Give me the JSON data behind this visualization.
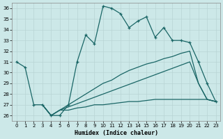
{
  "xlabel": "Humidex (Indice chaleur)",
  "bg_color": "#cce8e8",
  "line_color": "#1a6666",
  "xlim": [
    -0.5,
    23.5
  ],
  "ylim": [
    25.5,
    36.5
  ],
  "yticks": [
    26,
    27,
    28,
    29,
    30,
    31,
    32,
    33,
    34,
    35,
    36
  ],
  "xticks": [
    0,
    1,
    2,
    3,
    4,
    5,
    6,
    7,
    8,
    9,
    10,
    11,
    12,
    13,
    14,
    15,
    16,
    17,
    18,
    19,
    20,
    21,
    22,
    23
  ],
  "series": [
    {
      "x": [
        0,
        1,
        2,
        3,
        4,
        5,
        6,
        7,
        8,
        9,
        10,
        11,
        12,
        13,
        14,
        15,
        16,
        17,
        18,
        19,
        20,
        21,
        22,
        23
      ],
      "y": [
        31.0,
        30.5,
        27.0,
        27.0,
        26.0,
        26.0,
        27.0,
        31.0,
        33.5,
        32.7,
        36.2,
        36.0,
        35.5,
        34.2,
        34.8,
        35.2,
        33.3,
        34.2,
        33.0,
        33.0,
        32.8,
        31.0,
        29.0,
        27.3
      ],
      "marker": "+"
    },
    {
      "x": [
        3,
        4,
        5,
        20,
        21,
        22,
        23
      ],
      "y": [
        27.0,
        26.0,
        26.5,
        31.0,
        29.0,
        27.5,
        27.3
      ],
      "marker": null
    },
    {
      "x": [
        3,
        4,
        5,
        6,
        7,
        8,
        9,
        10,
        11,
        12,
        13,
        14,
        15,
        16,
        17,
        18,
        19,
        20,
        21,
        22,
        23
      ],
      "y": [
        27.0,
        26.0,
        26.5,
        27.0,
        27.5,
        28.0,
        28.5,
        29.0,
        29.3,
        29.8,
        30.2,
        30.5,
        30.8,
        31.0,
        31.3,
        31.5,
        31.8,
        32.0,
        29.0,
        27.5,
        27.3
      ],
      "marker": null
    },
    {
      "x": [
        3,
        4,
        5,
        6,
        7,
        8,
        9,
        10,
        11,
        12,
        13,
        14,
        15,
        16,
        17,
        18,
        19,
        20,
        21,
        22,
        23
      ],
      "y": [
        27.0,
        26.0,
        26.5,
        26.5,
        26.7,
        26.8,
        27.0,
        27.0,
        27.1,
        27.2,
        27.3,
        27.3,
        27.4,
        27.5,
        27.5,
        27.5,
        27.5,
        27.5,
        27.5,
        27.5,
        27.3
      ],
      "marker": null
    }
  ]
}
